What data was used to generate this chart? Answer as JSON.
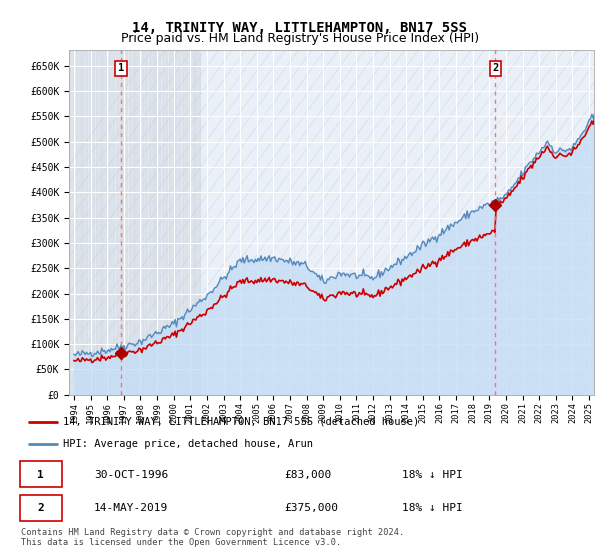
{
  "title": "14, TRINITY WAY, LITTLEHAMPTON, BN17 5SS",
  "subtitle": "Price paid vs. HM Land Registry's House Price Index (HPI)",
  "ylim": [
    0,
    680000
  ],
  "yticks": [
    0,
    50000,
    100000,
    150000,
    200000,
    250000,
    300000,
    350000,
    400000,
    450000,
    500000,
    550000,
    600000,
    650000
  ],
  "ytick_labels": [
    "£0",
    "£50K",
    "£100K",
    "£150K",
    "£200K",
    "£250K",
    "£300K",
    "£350K",
    "£400K",
    "£450K",
    "£500K",
    "£550K",
    "£600K",
    "£650K"
  ],
  "xlim_start": 1993.7,
  "xlim_end": 2025.3,
  "sale1_date": 1996.833,
  "sale1_price": 83000,
  "sale2_date": 2019.37,
  "sale2_price": 375000,
  "hpi_color": "#5588bb",
  "hpi_fill_color": "#ddeeff",
  "sale_color": "#cc0000",
  "vline_color": "#ff6666",
  "marker_color": "#aa0000",
  "legend1_label": "14, TRINITY WAY, LITTLEHAMPTON, BN17 5SS (detached house)",
  "legend2_label": "HPI: Average price, detached house, Arun",
  "footer": "Contains HM Land Registry data © Crown copyright and database right 2024.\nThis data is licensed under the Open Government Licence v3.0.",
  "sale1_date_str": "30-OCT-1996",
  "sale2_date_str": "14-MAY-2019",
  "sale1_pct": "18% ↓ HPI",
  "sale2_pct": "18% ↓ HPI",
  "title_fontsize": 10,
  "subtitle_fontsize": 9
}
